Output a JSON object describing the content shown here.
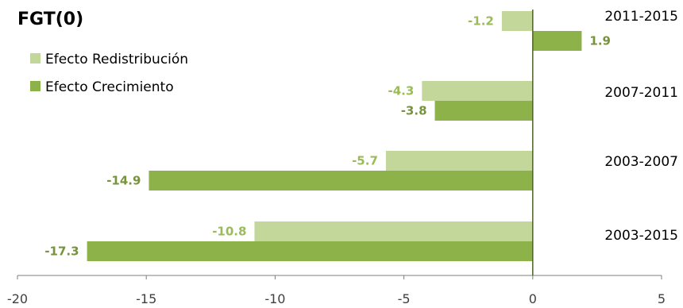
{
  "chart_data": {
    "type": "bar",
    "orientation": "horizontal",
    "title": "FGT(0)",
    "categories": [
      "2011-2015",
      "2007-2011",
      "2003-2007",
      "2003-2015"
    ],
    "series": [
      {
        "name": "Efecto Redistribución",
        "values": [
          -1.2,
          -4.3,
          -5.7,
          -10.8
        ],
        "color": "#c4d79b"
      },
      {
        "name": "Efecto Crecimiento",
        "values": [
          1.9,
          -3.8,
          -14.9,
          -17.3
        ],
        "color": "#8db249"
      }
    ],
    "xlim": [
      -20,
      5
    ],
    "xticks": [
      -20,
      -15,
      -10,
      -5,
      0,
      5
    ],
    "xlabel": "",
    "ylabel": "",
    "grid": false,
    "legend": "top-left",
    "label_colors": {
      "Efecto Redistribución": "#9bbb59",
      "Efecto Crecimiento": "#77933c"
    },
    "axis_color": "#4f6228"
  }
}
